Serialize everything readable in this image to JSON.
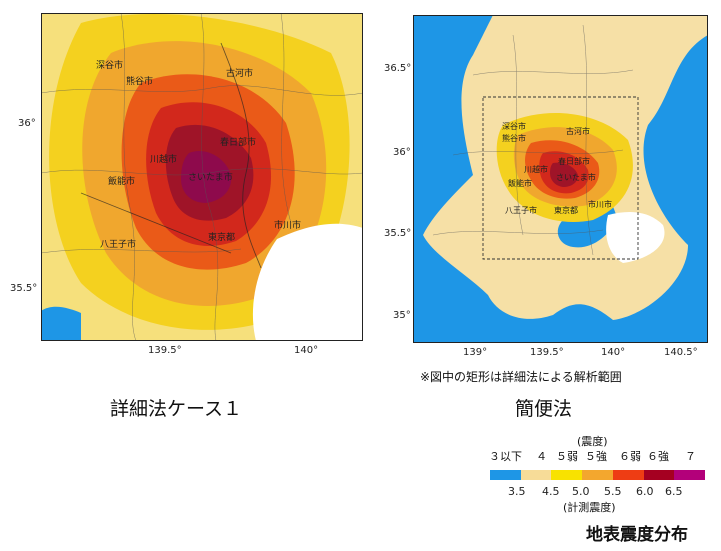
{
  "left_map": {
    "x_ticks": [
      "139.5°",
      "140°"
    ],
    "y_ticks": [
      "36°",
      "35.5°"
    ],
    "cities": [
      "深谷市",
      "熊谷市",
      "古河市",
      "春日部市",
      "川越市",
      "飯能市",
      "さいたま市",
      "八王子市",
      "東京都",
      "市川市"
    ],
    "caption": "詳細法ケース１"
  },
  "right_map": {
    "x_ticks": [
      "139°",
      "139.5°",
      "140°",
      "140.5°"
    ],
    "y_ticks": [
      "36.5°",
      "36°",
      "35.5°",
      "35°"
    ],
    "cities": [
      "深谷市",
      "熊谷市",
      "古河市",
      "川越市",
      "春日部市",
      "飯能市",
      "さいたま市",
      "八王子市",
      "東京都",
      "市川市"
    ],
    "caption": "簡便法",
    "note": "※図中の矩形は詳細法による解析範囲"
  },
  "legend": {
    "title_top": "(震度)",
    "classes": [
      "３以下",
      "４",
      "５弱",
      "５強",
      "６弱",
      "６強",
      "７"
    ],
    "thresholds": [
      "3.5",
      "4.5",
      "5.0",
      "5.5",
      "6.0",
      "6.5"
    ],
    "title_bottom": "(計測震度)",
    "colors": [
      "#1e96e6",
      "#f7dc98",
      "#f8e200",
      "#f3a72e",
      "#ee3d14",
      "#a50021",
      "#b3007a"
    ]
  },
  "figure_title": "地表震度分布"
}
